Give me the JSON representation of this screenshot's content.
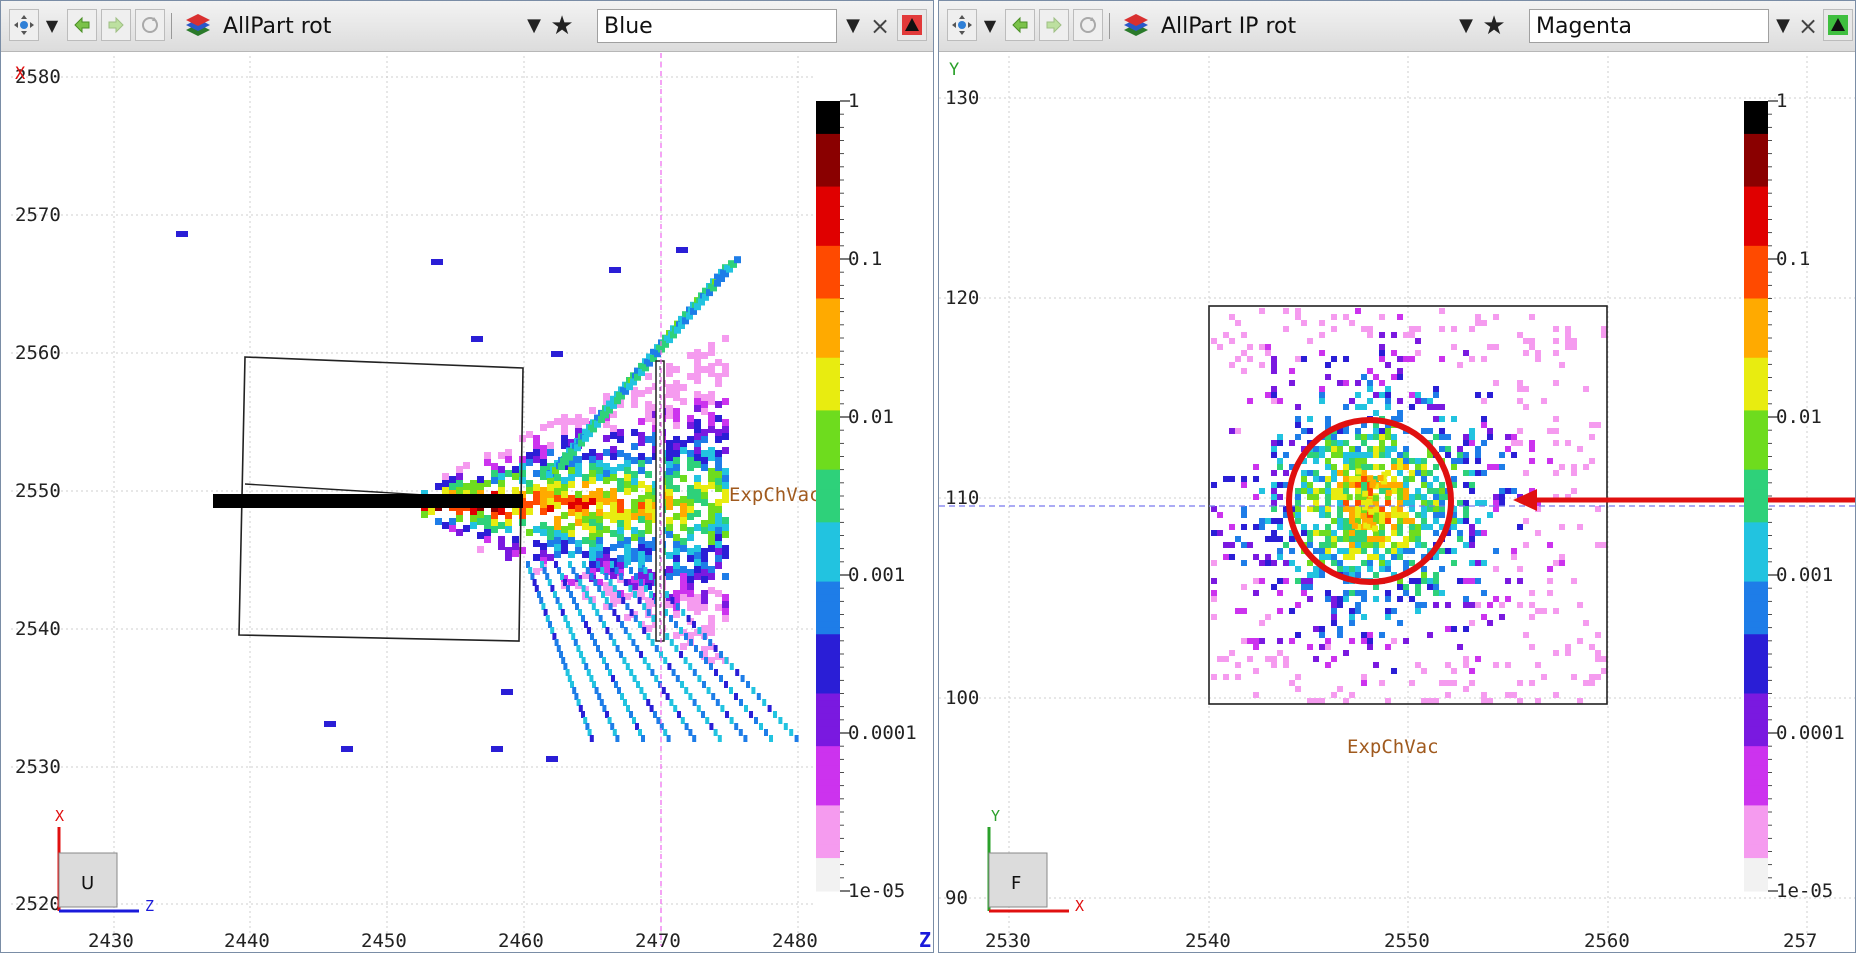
{
  "left": {
    "toolbar": {
      "particle_label": "AllPart rot",
      "color_value": "Blue",
      "close_glyph": "×",
      "star_glyph": "★",
      "dropdown_glyph": "▼"
    },
    "axes": {
      "corner_axis": "X",
      "vertical_ticks": [
        "2580",
        "2570",
        "2560",
        "2550",
        "2540",
        "2530",
        "2520"
      ],
      "horizontal_ticks": [
        "2430",
        "2440",
        "2450",
        "2460",
        "2470",
        "2480"
      ],
      "horizontal_axis": "Z",
      "gizmo_up": "X",
      "gizmo_right": "Z",
      "view_button": "U",
      "region_label": "ExpChVac"
    },
    "colorbar": {
      "ticks": [
        "1",
        "0.1",
        "0.01",
        "0.001",
        "0.0001",
        "1e-05"
      ]
    }
  },
  "right": {
    "toolbar": {
      "particle_label": "AllPart IP rot",
      "color_value": "Magenta",
      "close_glyph": "×",
      "star_glyph": "★",
      "dropdown_glyph": "▼"
    },
    "axes": {
      "corner_axis": "Y",
      "vertical_ticks": [
        "130",
        "120",
        "110",
        "100",
        "90"
      ],
      "horizontal_ticks": [
        "2530",
        "2540",
        "2550",
        "2560",
        "257"
      ],
      "gizmo_up": "Y",
      "gizmo_right": "X",
      "view_button": "F",
      "region_label": "ExpChVac"
    },
    "colorbar": {
      "ticks": [
        "1",
        "0.1",
        "0.01",
        "0.001",
        "0.0001",
        "1e-05"
      ]
    }
  },
  "colors": {
    "colormap": [
      "#f2f2f2",
      "#f59bef",
      "#cc33ee",
      "#7a19e0",
      "#2a1ed6",
      "#1e7de8",
      "#22c3e0",
      "#2ed17a",
      "#6edc1e",
      "#e8ec10",
      "#ffaa00",
      "#ff4a00",
      "#e00000",
      "#8a0000",
      "#000000"
    ],
    "annotation": "#e01010",
    "crosshair_left": "#ee66ee",
    "crosshair_right": "#7777ee",
    "region_label_color": "#a05a1e",
    "frame": "#7a8da6"
  },
  "icons": [
    "move-icon",
    "back-arrow-icon",
    "forward-arrow-icon",
    "reload-icon",
    "layers-icon",
    "star-icon",
    "close-icon",
    "collapse-triangle-icon"
  ]
}
